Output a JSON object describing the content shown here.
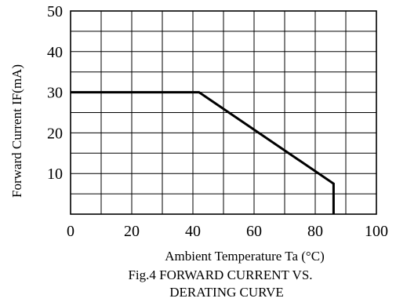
{
  "chart_data": {
    "type": "line",
    "title_lines": [
      "Fig.4 FORWARD CURRENT  VS.",
      "DERATING CURVE"
    ],
    "xlabel": "Ambient Temperature Ta (°C)",
    "ylabel": "Forward Current IF(mA)",
    "xlim": [
      0,
      100
    ],
    "ylim": [
      0,
      50
    ],
    "x_ticks": [
      0,
      20,
      40,
      60,
      80,
      100
    ],
    "x_tick_labels": [
      "0",
      "20",
      "40",
      "60",
      "80",
      "100"
    ],
    "y_ticks": [
      10,
      20,
      30,
      40,
      50
    ],
    "y_tick_labels": [
      "10",
      "20",
      "30",
      "40",
      "50"
    ],
    "x_grid_step": 10,
    "y_grid_step": 5,
    "grid": true,
    "series": [
      {
        "x": [
          0,
          42,
          86,
          86
        ],
        "y": [
          30,
          30,
          7.5,
          0
        ]
      }
    ],
    "colors": {
      "grid": "#000000",
      "line": "#000000",
      "axis": "#000000"
    }
  }
}
